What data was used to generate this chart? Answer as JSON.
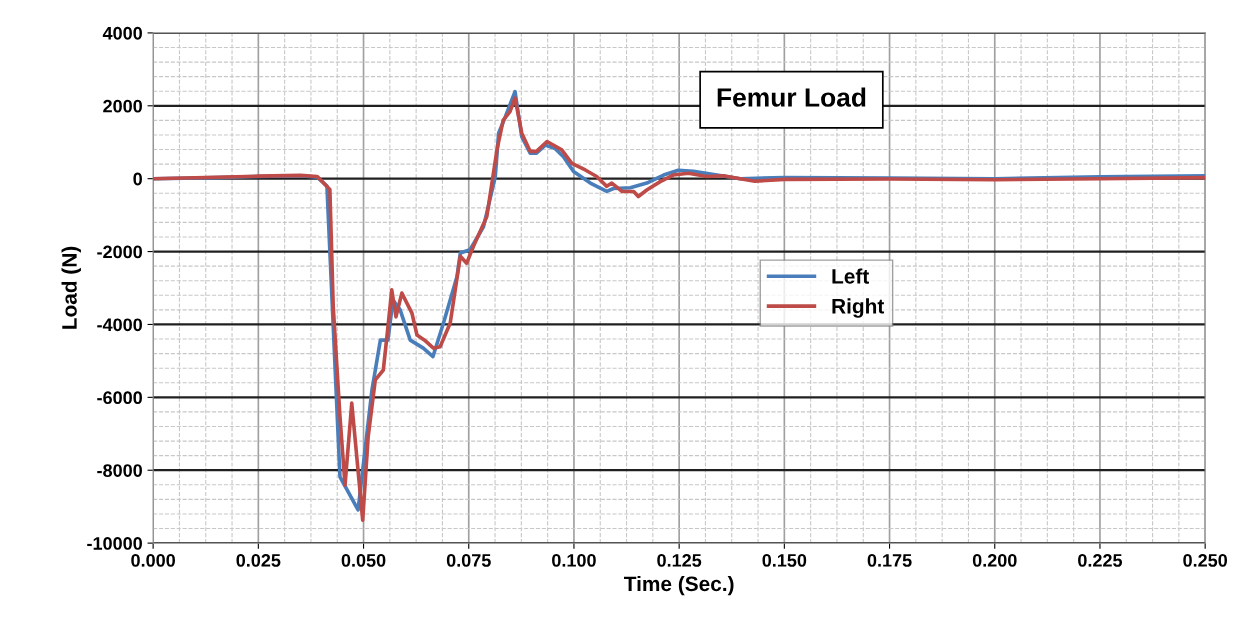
{
  "chart_data": {
    "type": "line",
    "title": "Femur Load",
    "xlabel": "Time (Sec.)",
    "ylabel": "Load (N)",
    "xlim": [
      0,
      0.25
    ],
    "ylim": [
      -10000,
      4000
    ],
    "xticks": [
      {
        "value": 0,
        "label": "0.000"
      },
      {
        "value": 0.025,
        "label": "0.025"
      },
      {
        "value": 0.05,
        "label": "0.050"
      },
      {
        "value": 0.075,
        "label": "0.075"
      },
      {
        "value": 0.1,
        "label": "0.100"
      },
      {
        "value": 0.125,
        "label": "0.125"
      },
      {
        "value": 0.15,
        "label": "0.150"
      },
      {
        "value": 0.175,
        "label": "0.175"
      },
      {
        "value": 0.2,
        "label": "0.200"
      },
      {
        "value": 0.225,
        "label": "0.225"
      },
      {
        "value": 0.25,
        "label": "0.250"
      }
    ],
    "yticks": [
      -10000,
      -8000,
      -6000,
      -4000,
      -2000,
      0,
      2000,
      4000
    ],
    "grid": true,
    "legend": "center",
    "marker": "none",
    "line_style": "solid",
    "series": [
      {
        "name": "Left",
        "color": "#4a7ebb",
        "x": [
          0,
          0.015,
          0.025,
          0.035,
          0.039,
          0.0413,
          0.0444,
          0.0487,
          0.052,
          0.054,
          0.0558,
          0.057,
          0.0587,
          0.0611,
          0.0642,
          0.0665,
          0.069,
          0.0722,
          0.073,
          0.0753,
          0.0785,
          0.0813,
          0.0821,
          0.0837,
          0.086,
          0.0876,
          0.0896,
          0.0911,
          0.0932,
          0.0955,
          0.0975,
          0.0999,
          0.1039,
          0.1078,
          0.1094,
          0.1134,
          0.1173,
          0.1213,
          0.1248,
          0.1284,
          0.134,
          0.1395,
          0.15,
          0.175,
          0.2,
          0.225,
          0.25
        ],
        "values": [
          0,
          30,
          60,
          80,
          40,
          -200,
          -8180,
          -9090,
          -5800,
          -4430,
          -4430,
          -3330,
          -3600,
          -4430,
          -4650,
          -4880,
          -3960,
          -2690,
          -2040,
          -1950,
          -1320,
          50,
          1250,
          1700,
          2390,
          1150,
          700,
          700,
          920,
          830,
          600,
          200,
          -120,
          -350,
          -270,
          -250,
          -120,
          100,
          230,
          200,
          100,
          0,
          30,
          20,
          0,
          50,
          80
        ]
      },
      {
        "name": "Right",
        "color": "#be4b48",
        "x": [
          0,
          0.015,
          0.025,
          0.035,
          0.039,
          0.042,
          0.0428,
          0.0444,
          0.0456,
          0.0472,
          0.0498,
          0.0511,
          0.0528,
          0.0547,
          0.0559,
          0.0567,
          0.0577,
          0.0591,
          0.0615,
          0.0627,
          0.0645,
          0.0666,
          0.0682,
          0.0706,
          0.073,
          0.0745,
          0.0761,
          0.0793,
          0.0817,
          0.0832,
          0.0848,
          0.086,
          0.0876,
          0.0896,
          0.0911,
          0.0936,
          0.0971,
          0.0995,
          0.1027,
          0.1054,
          0.1078,
          0.109,
          0.1114,
          0.1142,
          0.1153,
          0.1173,
          0.1205,
          0.1236,
          0.1272,
          0.1316,
          0.1355,
          0.1395,
          0.143,
          0.15,
          0.175,
          0.2,
          0.225,
          0.25
        ],
        "values": [
          0,
          40,
          70,
          90,
          60,
          -300,
          -3510,
          -6530,
          -8410,
          -6160,
          -9370,
          -7080,
          -5520,
          -5250,
          -3960,
          -3050,
          -3790,
          -3140,
          -3690,
          -4290,
          -4430,
          -4650,
          -4610,
          -3960,
          -2130,
          -2320,
          -1860,
          -1040,
          790,
          1610,
          1840,
          2210,
          1250,
          750,
          750,
          1020,
          790,
          420,
          240,
          60,
          -210,
          -120,
          -350,
          -350,
          -490,
          -310,
          -80,
          100,
          150,
          60,
          80,
          0,
          -70,
          -20,
          -10,
          -30,
          0,
          30
        ]
      }
    ]
  }
}
